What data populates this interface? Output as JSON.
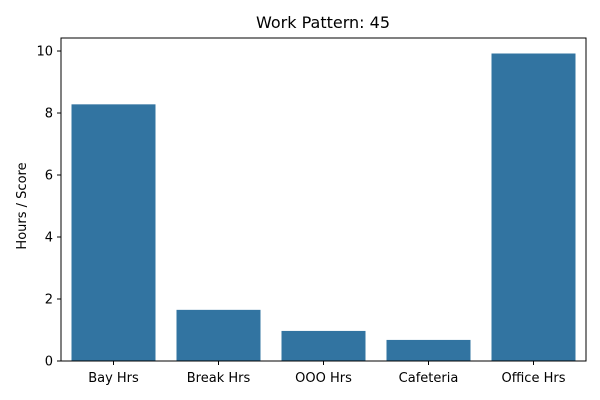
{
  "chart_data": {
    "type": "bar",
    "title": "Work Pattern: 45",
    "xlabel": "",
    "ylabel": "Hours / Score",
    "categories": [
      "Bay Hrs",
      "Break Hrs",
      "OOO Hrs",
      "Cafeteria",
      "Office Hrs"
    ],
    "values": [
      8.28,
      1.65,
      0.97,
      0.68,
      9.92
    ],
    "ylim": [
      0,
      10.42
    ],
    "yticks": [
      "0",
      "2",
      "4",
      "6",
      "8",
      "10"
    ],
    "bar_color": "#3274a1",
    "grid": false
  }
}
